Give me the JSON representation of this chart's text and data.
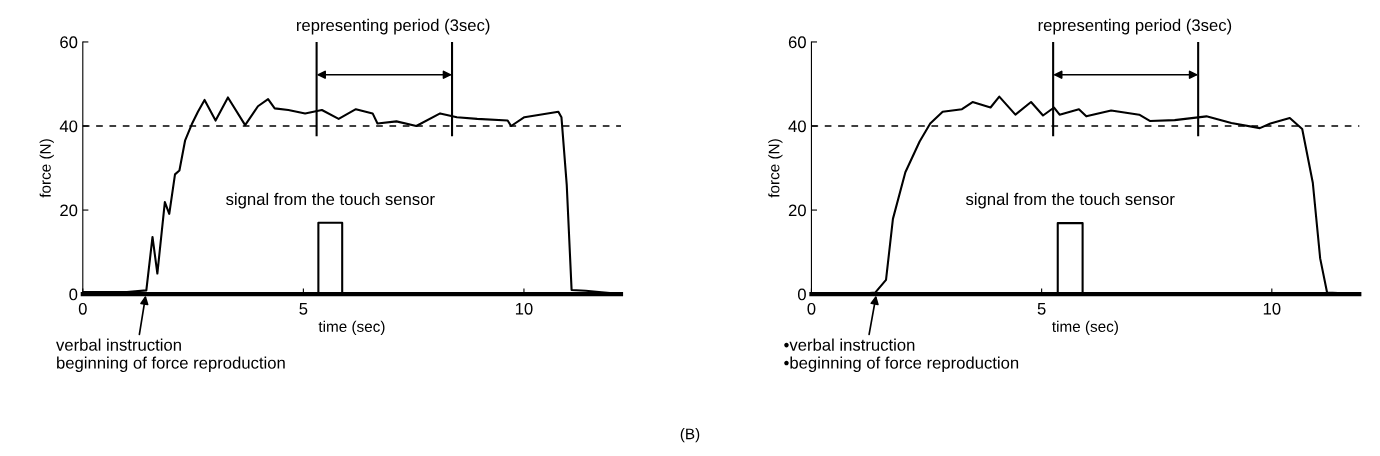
{
  "chart_data": [
    {
      "type": "line",
      "xlabel": "time (sec)",
      "ylabel": "force (N)",
      "xlim": [
        0,
        12.2
      ],
      "ylim": [
        0,
        60
      ],
      "xticks": [
        0,
        5,
        10
      ],
      "yticks": [
        0,
        20,
        40,
        60
      ],
      "grid": false,
      "legend": false,
      "marker": "none",
      "line_style": "solid",
      "series": [
        {
          "color": "#000000",
          "x": [
            0,
            0.5,
            1.0,
            1.44,
            1.58,
            1.69,
            1.86,
            1.96,
            2.09,
            2.19,
            2.32,
            2.47,
            2.61,
            2.76,
            3.01,
            3.29,
            3.68,
            3.97,
            4.2,
            4.35,
            4.66,
            5.04,
            5.42,
            5.8,
            6.19,
            6.57,
            6.68,
            7.11,
            7.56,
            8.1,
            8.48,
            8.94,
            9.63,
            9.71,
            10.01,
            10.78,
            10.85,
            10.97,
            11.08,
            11.4,
            11.7,
            12.2
          ],
          "values": [
            0.5,
            0.5,
            0.5,
            0.9,
            13.6,
            4.9,
            21.9,
            19.1,
            28.5,
            29.4,
            36.6,
            40.4,
            43.4,
            46.2,
            41.3,
            46.8,
            40.2,
            44.7,
            46.4,
            44.2,
            43.8,
            43.0,
            43.8,
            41.7,
            44.0,
            43.0,
            40.6,
            41.1,
            40.0,
            43.0,
            42.1,
            41.7,
            41.3,
            40.0,
            42.1,
            43.4,
            42.1,
            26.0,
            1.0,
            0.8,
            0.5,
            0
          ]
        },
        {
          "color": "#000000",
          "type": "line",
          "x": [
            5.34,
            5.34,
            5.88,
            5.88
          ],
          "values": [
            0,
            17,
            17,
            0
          ]
        }
      ],
      "ref_lines": [
        {
          "axis": "y",
          "value": 40,
          "line_style": "dashed",
          "color": "#000000"
        },
        {
          "axis": "x",
          "value": 5.3,
          "color": "#000000"
        },
        {
          "axis": "x",
          "value": 8.37,
          "color": "#000000"
        }
      ],
      "annotations": [
        "representing period (3sec)",
        "signal from the touch sensor",
        {
          "text": "verbal instruction\nbeginning of force reproduction",
          "x": 1.43,
          "y": 0
        },
        "(B)"
      ]
    },
    {
      "type": "line",
      "xlabel": "time (sec)",
      "ylabel": "force (N)",
      "xlim": [
        0,
        11.9
      ],
      "ylim": [
        0,
        60
      ],
      "xticks": [
        0,
        5,
        10
      ],
      "yticks": [
        0,
        20,
        40,
        60
      ],
      "grid": false,
      "legend": false,
      "marker": "none",
      "line_style": "solid",
      "series": [
        {
          "color": "#000000",
          "x": [
            0,
            0.5,
            1.0,
            1.39,
            1.62,
            1.77,
            2.04,
            2.35,
            2.58,
            2.85,
            3.27,
            3.5,
            3.89,
            4.08,
            4.43,
            4.77,
            5.03,
            5.27,
            5.39,
            5.81,
            5.97,
            6.51,
            7.12,
            7.35,
            7.89,
            8.58,
            9.12,
            9.74,
            9.97,
            10.39,
            10.66,
            10.89,
            11.05,
            11.2,
            11.9
          ],
          "values": [
            0,
            0,
            0,
            0.4,
            3.4,
            17.9,
            29.0,
            36.3,
            40.6,
            43.4,
            44.0,
            45.7,
            44.4,
            47.0,
            42.7,
            45.7,
            42.5,
            44.4,
            42.7,
            44.0,
            42.3,
            43.7,
            42.7,
            41.2,
            41.4,
            42.3,
            40.7,
            39.5,
            40.6,
            41.9,
            39.3,
            26.5,
            8.5,
            0.4,
            0
          ]
        },
        {
          "color": "#000000",
          "type": "line",
          "x": [
            5.35,
            5.35,
            5.89,
            5.89
          ],
          "values": [
            0,
            16.9,
            16.9,
            0
          ]
        }
      ],
      "ref_lines": [
        {
          "axis": "y",
          "value": 40,
          "line_style": "dashed",
          "color": "#000000"
        },
        {
          "axis": "x",
          "value": 5.25,
          "color": "#000000"
        },
        {
          "axis": "x",
          "value": 8.4,
          "color": "#000000"
        }
      ],
      "annotations": [
        "representing period (3sec)",
        "signal from the touch sensor",
        {
          "text": "•verbal instruction\n•beginning of force reproduction",
          "x": 1.41,
          "y": 0
        }
      ]
    }
  ]
}
